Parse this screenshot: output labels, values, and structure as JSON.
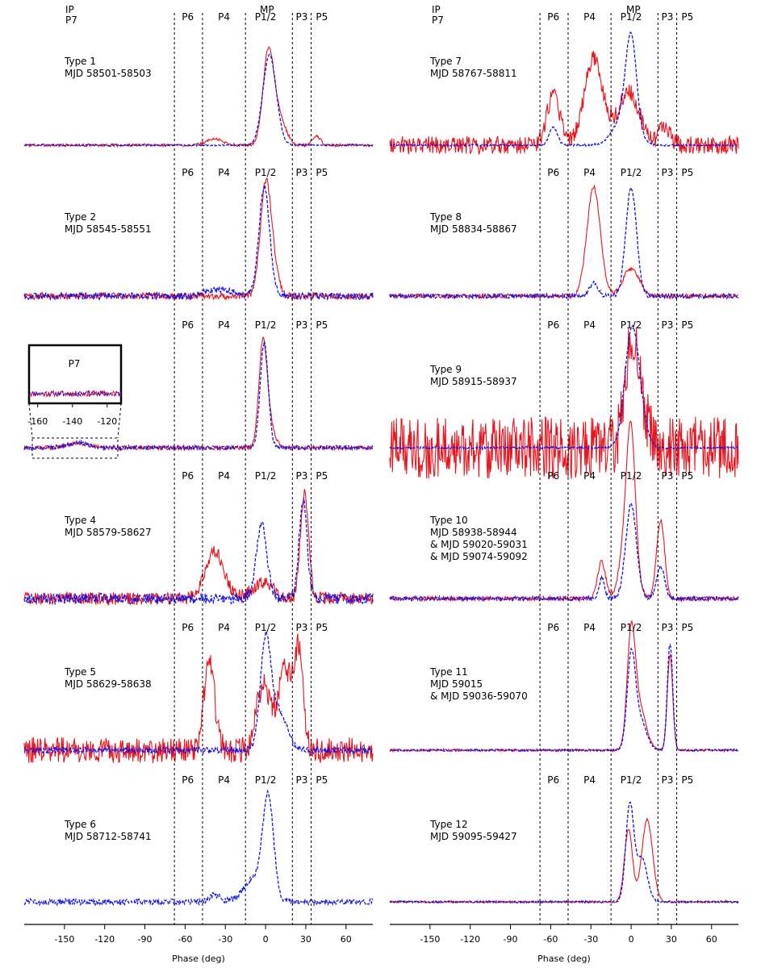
{
  "header": {
    "ip": "IP",
    "p7": "P7",
    "mp": "MP"
  },
  "component_labels": [
    "P6",
    "P4",
    "P1/2",
    "P3",
    "P5"
  ],
  "component_boundaries_deg": [
    -68,
    -47,
    -15,
    20,
    34
  ],
  "x_axis": {
    "label": "Phase (deg)",
    "ticks": [
      -150,
      -120,
      -90,
      -60,
      -30,
      0,
      30,
      60
    ],
    "xlim": [
      -180,
      80
    ]
  },
  "inset": {
    "label": "P7",
    "ticks": [
      -160,
      -140,
      -120
    ],
    "xlim": [
      -165,
      -112
    ]
  },
  "chart_data": [
    {
      "type": "line",
      "column": "left",
      "row": 0,
      "title": "Type 1",
      "subtitle": [
        "MJD 58501-58503"
      ],
      "series": [
        {
          "color": "#e8141e",
          "style": "solid",
          "noise": 0.015,
          "peaks": [
            [
              2,
              1.0,
              4
            ],
            [
              10,
              0.3,
              5
            ],
            [
              -38,
              0.07,
              6
            ],
            [
              38,
              0.1,
              3
            ]
          ]
        },
        {
          "color": "#1414e6",
          "style": "dashed",
          "noise": 0.008,
          "peaks": [
            [
              3,
              1.0,
              5
            ]
          ]
        }
      ]
    },
    {
      "type": "line",
      "column": "left",
      "row": 1,
      "title": "Type 2",
      "subtitle": [
        "MJD 58545-58551"
      ],
      "series": [
        {
          "color": "#e8141e",
          "style": "solid",
          "noise": 0.03,
          "peaks": [
            [
              0,
              1.0,
              4
            ],
            [
              6,
              0.2,
              4
            ]
          ]
        },
        {
          "color": "#1414e6",
          "style": "dashed",
          "noise": 0.03,
          "peaks": [
            [
              -1,
              1.0,
              4
            ],
            [
              -35,
              0.06,
              10
            ]
          ]
        }
      ]
    },
    {
      "type": "line",
      "column": "left",
      "row": 2,
      "title": "Type 3",
      "subtitle": [
        "MJD 58552"
      ],
      "series": [
        {
          "color": "#e8141e",
          "style": "solid",
          "noise": 0.02,
          "peaks": [
            [
              -2,
              0.95,
              3
            ],
            [
              3,
              0.2,
              4
            ],
            [
              -140,
              0.04,
              8
            ]
          ]
        },
        {
          "color": "#1414e6",
          "style": "dashed",
          "noise": 0.02,
          "peaks": [
            [
              -1,
              1.0,
              3
            ],
            [
              -140,
              0.05,
              8
            ]
          ]
        }
      ]
    },
    {
      "type": "line",
      "column": "left",
      "row": 3,
      "title": "Type 4",
      "subtitle": [
        "MJD 58579-58627"
      ],
      "series": [
        {
          "color": "#e8141e",
          "style": "solid",
          "noise": 0.06,
          "peaks": [
            [
              -38,
              0.45,
              7
            ],
            [
              -2,
              0.15,
              8
            ],
            [
              29,
              1.0,
              3
            ]
          ]
        },
        {
          "color": "#1414e6",
          "style": "dashed",
          "noise": 0.05,
          "peaks": [
            [
              -3,
              0.7,
              4
            ],
            [
              28,
              0.95,
              3
            ]
          ]
        }
      ]
    },
    {
      "type": "line",
      "column": "left",
      "row": 4,
      "title": "Type 5",
      "subtitle": [
        "MJD 58629-58638"
      ],
      "series": [
        {
          "color": "#e8141e",
          "style": "solid",
          "noise": 0.12,
          "peaks": [
            [
              -42,
              0.85,
              4
            ],
            [
              -2,
              0.6,
              5
            ],
            [
              15,
              0.75,
              6
            ],
            [
              25,
              0.8,
              3
            ]
          ]
        },
        {
          "color": "#1414e6",
          "style": "dashed",
          "noise": 0.03,
          "peaks": [
            [
              0,
              1.0,
              4
            ],
            [
              10,
              0.35,
              6
            ]
          ]
        }
      ]
    },
    {
      "type": "line",
      "column": "left",
      "row": 5,
      "title": "Type 6",
      "subtitle": [
        "MJD 58712-58741"
      ],
      "series": [
        {
          "color": "#1414e6",
          "style": "dashed",
          "noise": 0.03,
          "peaks": [
            [
              2,
              1.0,
              4
            ],
            [
              -8,
              0.25,
              8
            ],
            [
              -38,
              0.07,
              4
            ]
          ]
        }
      ]
    },
    {
      "type": "line",
      "column": "right",
      "row": 0,
      "title": "Type 7",
      "subtitle": [
        "MJD 58767-58811"
      ],
      "series": [
        {
          "color": "#e8141e",
          "style": "solid",
          "noise": 0.1,
          "peaks": [
            [
              -58,
              0.55,
              5
            ],
            [
              -28,
              0.95,
              7
            ],
            [
              -2,
              0.6,
              8
            ],
            [
              25,
              0.2,
              4
            ]
          ]
        },
        {
          "color": "#1414e6",
          "style": "dashed",
          "noise": 0.01,
          "peaks": [
            [
              -58,
              0.2,
              3
            ],
            [
              0,
              1.0,
              4
            ],
            [
              -5,
              0.3,
              8
            ]
          ]
        }
      ]
    },
    {
      "type": "line",
      "column": "right",
      "row": 1,
      "title": "Type 8",
      "subtitle": [
        "MJD 58834-58867"
      ],
      "series": [
        {
          "color": "#e8141e",
          "style": "solid",
          "noise": 0.02,
          "peaks": [
            [
              -28,
              1.0,
              5
            ],
            [
              0,
              0.25,
              6
            ]
          ]
        },
        {
          "color": "#1414e6",
          "style": "dashed",
          "noise": 0.02,
          "peaks": [
            [
              0,
              1.0,
              4
            ],
            [
              -28,
              0.12,
              3
            ]
          ]
        }
      ]
    },
    {
      "type": "line",
      "column": "right",
      "row": 2,
      "title": "Type 9",
      "subtitle": [
        "MJD 58915-58937"
      ],
      "series": [
        {
          "color": "#e8141e",
          "style": "solid",
          "noise": 0.3,
          "peaks": [
            [
              0,
              0.9,
              5
            ],
            [
              8,
              0.3,
              5
            ]
          ]
        },
        {
          "color": "#1414e6",
          "style": "dashed",
          "noise": 0.01,
          "peaks": [
            [
              0,
              1.0,
              5
            ],
            [
              6,
              0.3,
              5
            ]
          ]
        }
      ]
    },
    {
      "type": "line",
      "column": "right",
      "row": 3,
      "title": "Type 10",
      "subtitle": [
        "MJD 58938-58944",
        "& MJD 59020-59031",
        "& MJD 59074-59092"
      ],
      "series": [
        {
          "color": "#e8141e",
          "style": "solid",
          "noise": 0.02,
          "peaks": [
            [
              -22,
              0.35,
              3
            ],
            [
              -2,
              0.8,
              5
            ],
            [
              0,
              0.95,
              3
            ],
            [
              22,
              0.75,
              3
            ]
          ]
        },
        {
          "color": "#1414e6",
          "style": "dashed",
          "noise": 0.02,
          "peaks": [
            [
              -22,
              0.2,
              2
            ],
            [
              0,
              0.9,
              4
            ],
            [
              22,
              0.3,
              3
            ]
          ]
        }
      ]
    },
    {
      "type": "line",
      "column": "right",
      "row": 4,
      "title": "Type 11",
      "subtitle": [
        "MJD 59015",
        "& MJD 59036-59070"
      ],
      "series": [
        {
          "color": "#e8141e",
          "style": "solid",
          "noise": 0.01,
          "peaks": [
            [
              0,
              1.0,
              3
            ],
            [
              6,
              0.4,
              5
            ],
            [
              29,
              0.9,
              2
            ]
          ]
        },
        {
          "color": "#1414e6",
          "style": "dashed",
          "noise": 0.01,
          "peaks": [
            [
              0,
              0.8,
              3
            ],
            [
              6,
              0.3,
              5
            ],
            [
              29,
              1.0,
              2
            ]
          ]
        }
      ]
    },
    {
      "type": "line",
      "column": "right",
      "row": 5,
      "title": "Type 12",
      "subtitle": [
        "MJD 59095-59427"
      ],
      "series": [
        {
          "color": "#e8141e",
          "style": "solid",
          "noise": 0.01,
          "peaks": [
            [
              -2,
              0.75,
              3
            ],
            [
              12,
              0.85,
              4
            ]
          ]
        },
        {
          "color": "#1414e6",
          "style": "dashed",
          "noise": 0.01,
          "peaks": [
            [
              -1,
              1.0,
              3
            ],
            [
              8,
              0.45,
              4
            ]
          ]
        }
      ]
    }
  ]
}
